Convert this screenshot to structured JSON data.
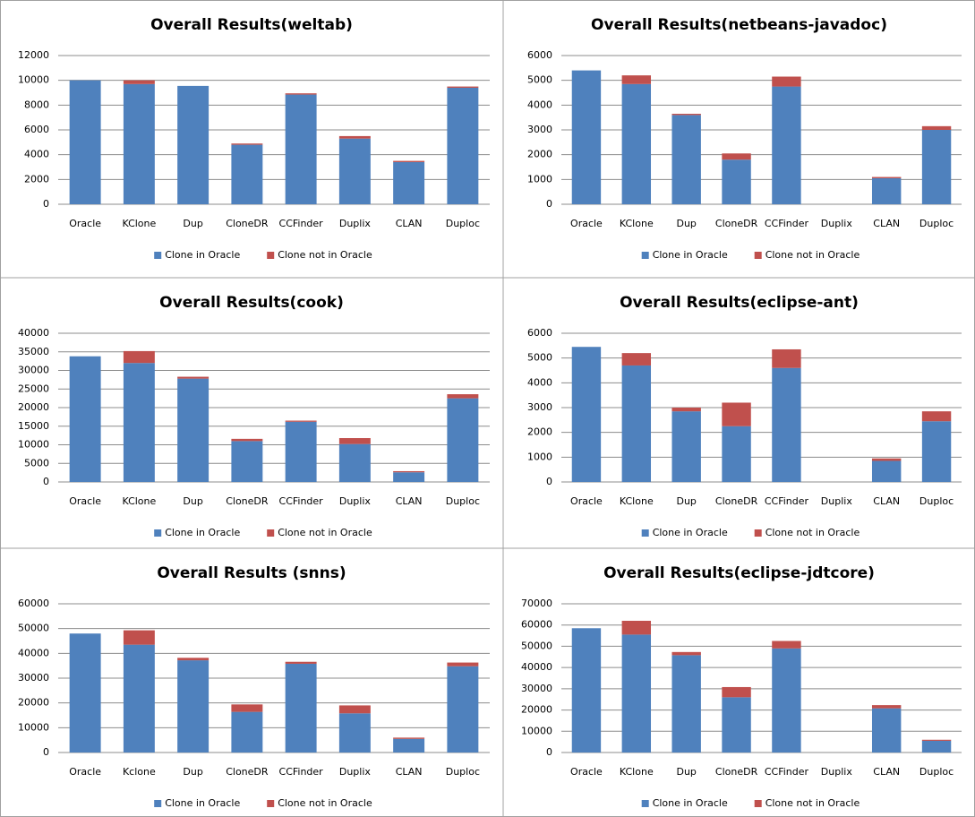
{
  "chart_data": [
    {
      "type": "bar",
      "stacked": true,
      "title": "Overall Results(weltab)",
      "categories": [
        "Oracle",
        "KClone",
        "Dup",
        "CloneDR",
        "CCFinder",
        "Duplix",
        "CLAN",
        "Duploc"
      ],
      "series": [
        {
          "name": "Clone in Oracle",
          "color": "#4f81bd",
          "values": [
            10000,
            9700,
            9550,
            4800,
            8850,
            5300,
            3400,
            9400
          ]
        },
        {
          "name": "Clone not in Oracle",
          "color": "#c0504d",
          "values": [
            0,
            300,
            0,
            100,
            100,
            200,
            100,
            100
          ]
        }
      ],
      "ylim": [
        0,
        12000
      ],
      "yticks": [
        0,
        2000,
        4000,
        6000,
        8000,
        10000,
        12000
      ],
      "grid": true,
      "legend": "bottom"
    },
    {
      "type": "bar",
      "stacked": true,
      "title": "Overall Results(netbeans-javadoc)",
      "categories": [
        "Oracle",
        "KClone",
        "Dup",
        "CloneDR",
        "CCFinder",
        "Duplix",
        "CLAN",
        "Duploc"
      ],
      "series": [
        {
          "name": "Clone in Oracle",
          "color": "#4f81bd",
          "values": [
            5400,
            4850,
            3600,
            1800,
            4750,
            0,
            1050,
            3000
          ]
        },
        {
          "name": "Clone not in Oracle",
          "color": "#c0504d",
          "values": [
            0,
            350,
            50,
            250,
            400,
            0,
            50,
            150
          ]
        }
      ],
      "ylim": [
        0,
        6000
      ],
      "yticks": [
        0,
        1000,
        2000,
        3000,
        4000,
        5000,
        6000
      ],
      "grid": true,
      "legend": "bottom"
    },
    {
      "type": "bar",
      "stacked": true,
      "title": "Overall Results(cook)",
      "categories": [
        "Oracle",
        "KClone",
        "Dup",
        "CloneDR",
        "CCFinder",
        "Duplix",
        "CLAN",
        "Duploc"
      ],
      "series": [
        {
          "name": "Clone in Oracle",
          "color": "#4f81bd",
          "values": [
            33800,
            32000,
            27800,
            11000,
            16200,
            10200,
            2600,
            22500
          ]
        },
        {
          "name": "Clone not in Oracle",
          "color": "#c0504d",
          "values": [
            0,
            3200,
            500,
            600,
            300,
            1600,
            300,
            1100
          ]
        }
      ],
      "ylim": [
        0,
        40000
      ],
      "yticks": [
        0,
        5000,
        10000,
        15000,
        20000,
        25000,
        30000,
        35000,
        40000
      ],
      "grid": true,
      "legend": "bottom"
    },
    {
      "type": "bar",
      "stacked": true,
      "title": "Overall Results(eclipse-ant)",
      "categories": [
        "Oracle",
        "KClone",
        "Dup",
        "CloneDR",
        "CCFinder",
        "Duplix",
        "CLAN",
        "Duploc"
      ],
      "series": [
        {
          "name": "Clone in Oracle",
          "color": "#4f81bd",
          "values": [
            5450,
            4700,
            2850,
            2250,
            4600,
            0,
            850,
            2450
          ]
        },
        {
          "name": "Clone not in Oracle",
          "color": "#c0504d",
          "values": [
            0,
            500,
            150,
            950,
            750,
            0,
            100,
            400
          ]
        }
      ],
      "ylim": [
        0,
        6000
      ],
      "yticks": [
        0,
        1000,
        2000,
        3000,
        4000,
        5000,
        6000
      ],
      "grid": true,
      "legend": "bottom"
    },
    {
      "type": "bar",
      "stacked": true,
      "title": "Overall Results (snns)",
      "categories": [
        "Oracle",
        "Kclone",
        "Dup",
        "CloneDR",
        "CCFinder",
        "Duplix",
        "CLAN",
        "Duploc"
      ],
      "series": [
        {
          "name": "Clone in Oracle",
          "color": "#4f81bd",
          "values": [
            48000,
            43500,
            37200,
            16400,
            35800,
            15800,
            5500,
            34800
          ]
        },
        {
          "name": "Clone not in Oracle",
          "color": "#c0504d",
          "values": [
            0,
            5800,
            1000,
            3000,
            800,
            3200,
            500,
            1500
          ]
        }
      ],
      "ylim": [
        0,
        60000
      ],
      "yticks": [
        0,
        10000,
        20000,
        30000,
        40000,
        50000,
        60000
      ],
      "grid": true,
      "legend": "bottom"
    },
    {
      "type": "bar",
      "stacked": true,
      "title": "Overall Results(eclipse-jdtcore)",
      "categories": [
        "Oracle",
        "KClone",
        "Dup",
        "CloneDR",
        "CCFinder",
        "Duplix",
        "CLAN",
        "Duploc"
      ],
      "series": [
        {
          "name": "Clone in Oracle",
          "color": "#4f81bd",
          "values": [
            58500,
            55500,
            45800,
            26000,
            49000,
            0,
            20800,
            5500
          ]
        },
        {
          "name": "Clone not in Oracle",
          "color": "#c0504d",
          "values": [
            0,
            6500,
            1500,
            4800,
            3500,
            0,
            1500,
            500
          ]
        }
      ],
      "ylim": [
        0,
        70000
      ],
      "yticks": [
        0,
        10000,
        20000,
        30000,
        40000,
        50000,
        60000,
        70000
      ],
      "grid": true,
      "legend": "bottom"
    }
  ]
}
